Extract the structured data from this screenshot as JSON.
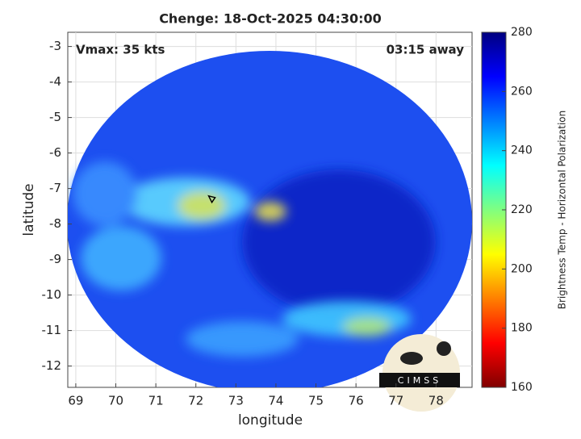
{
  "chart_data": {
    "type": "image",
    "title": "Chenge: 18-Oct-2025 04:30:00",
    "annotations": [
      "Vmax: 35 kts",
      "03:15 away"
    ],
    "x_label": "longitude",
    "y_label": "latitude",
    "xlim": [
      68.8,
      78.9
    ],
    "xticks": [
      69,
      70,
      71,
      72,
      73,
      74,
      75,
      76,
      77,
      78
    ],
    "ylim": [
      -12.6,
      -2.6
    ],
    "yticks": [
      -12,
      -11,
      -10,
      -9,
      -8,
      -7,
      -6,
      -5,
      -4,
      -3
    ],
    "grid": true,
    "storm_center": {
      "x": 72.4,
      "y": -7.3
    },
    "colorbar": {
      "label": "Brightness Temp - Horizontal Polarization",
      "lim": [
        160,
        280
      ],
      "ticks": [
        160,
        180,
        200,
        220,
        240,
        260,
        280
      ],
      "colormap": "jet"
    },
    "logo": "CIMSS"
  }
}
